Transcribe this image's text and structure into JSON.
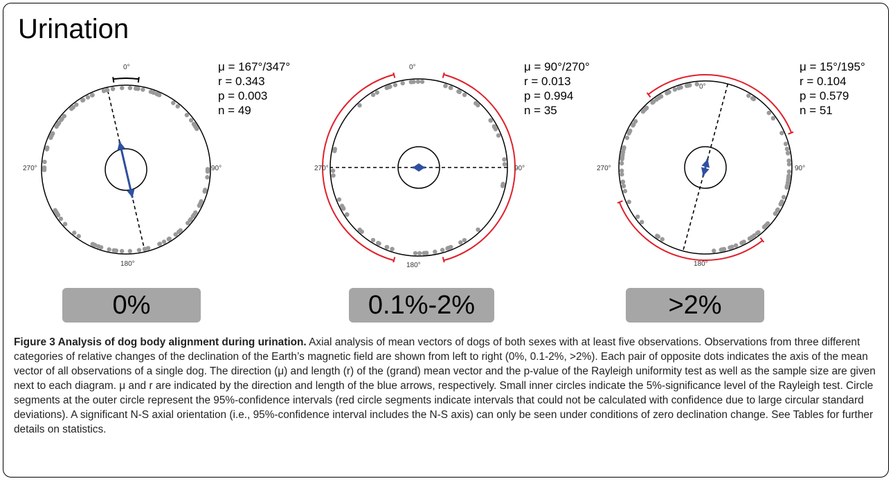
{
  "figure": {
    "title": "Urination",
    "panels": [
      {
        "stats": [
          "μ = 167°/347°",
          "r = 0.343",
          "p = 0.003",
          "n = 49"
        ],
        "category": "0%",
        "ci_color": "#000000",
        "mean_axis_deg": 167,
        "r": 0.343
      },
      {
        "stats": [
          "μ = 90°/270°",
          "r = 0.013",
          "p = 0.994",
          "n = 35"
        ],
        "category": "0.1%-2%",
        "ci_color": "#e0202a",
        "mean_axis_deg": 90,
        "r": 0.013
      },
      {
        "stats": [
          "μ = 15°/195°",
          "r = 0.104",
          "p = 0.579",
          "n = 51"
        ],
        "category": ">2%",
        "ci_color": "#e0202a",
        "mean_axis_deg": 15,
        "r": 0.104
      }
    ],
    "direction_labels": {
      "n": "0°",
      "e": "90°",
      "s": "180°",
      "w": "270°"
    }
  },
  "caption": {
    "bold": "Figure 3 Analysis of dog body alignment during urination.",
    "text": " Axial analysis of mean vectors of dogs of both sexes with at least five observations. Observations from three different categories of relative changes of the declination of the Earth’s magnetic field are shown from left to right (0%, 0.1-2%, >2%). Each pair of opposite dots indicates the axis of the mean vector of all observations of a single dog. The direction (μ) and length (r) of the (grand) mean vector and the p-value of the Rayleigh uniformity test as well as the sample size are given next to each diagram. μ and r are indicated by the direction and length of the blue arrows, respectively. Small inner circles indicate the 5%-significance level of the Rayleigh test. Circle segments at the outer circle represent the 95%-confidence intervals (red circle segments indicate intervals that could not be calculated with confidence due to large circular standard deviations). A significant N-S axial orientation (i.e., 95%-confidence interval includes the N-S axis) can only be seen under conditions of zero declination change. See Tables for further details on statistics."
  },
  "colors": {
    "arrow": "#2f4fa0",
    "dots": "#9a9a9a",
    "box": "#a6a6a6"
  }
}
